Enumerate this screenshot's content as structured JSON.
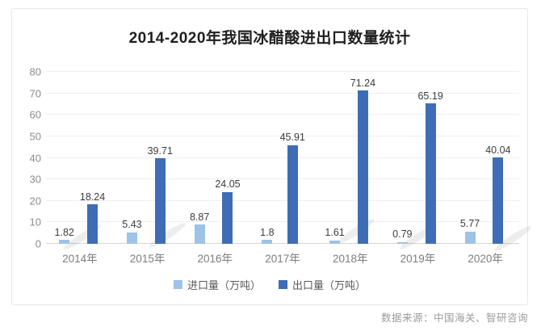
{
  "title": "2014-2020年我国冰醋酸进出口数量统计",
  "source_text": "数据来源：中国海关、智研咨询",
  "colors": {
    "import_bar": "#9dc3e6",
    "export_bar": "#3e6db5",
    "gridline": "#efefef",
    "baseline": "#d6d6d6"
  },
  "chart_data": {
    "type": "bar",
    "title": "2014-2020年我国冰醋酸进出口数量统计",
    "categories": [
      "2014年",
      "2015年",
      "2016年",
      "2017年",
      "2018年",
      "2019年",
      "2020年"
    ],
    "series": [
      {
        "name": "进口量（万吨）",
        "color": "#9dc3e6",
        "values": [
          1.82,
          5.43,
          8.87,
          1.8,
          1.61,
          0.79,
          5.77
        ]
      },
      {
        "name": "出口量（万吨）",
        "color": "#3e6db5",
        "values": [
          18.24,
          39.71,
          24.05,
          45.91,
          71.24,
          65.19,
          40.04
        ]
      }
    ],
    "xlabel": "",
    "ylabel": "",
    "ylim": [
      0,
      80
    ],
    "yticks": [
      0,
      10,
      20,
      30,
      40,
      50,
      60,
      70,
      80
    ],
    "grid": true,
    "data_labels": true,
    "legend_position": "bottom"
  }
}
